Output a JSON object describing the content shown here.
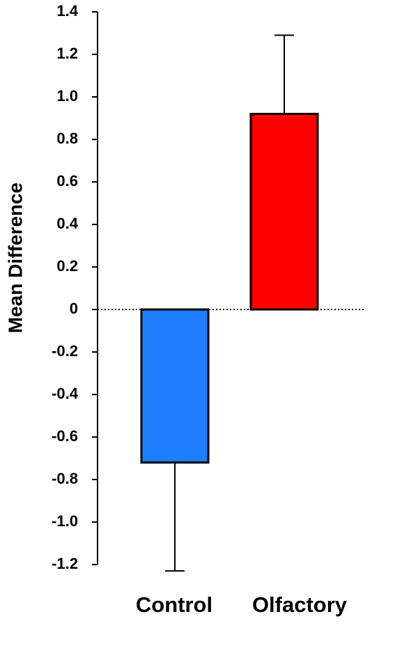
{
  "chart_data": {
    "type": "bar",
    "ylabel": "Mean Difference",
    "categories": [
      "Control",
      "Olfactory"
    ],
    "values": [
      -0.72,
      0.92
    ],
    "errors": [
      0.51,
      0.37
    ],
    "colors": [
      "#1e7cff",
      "#ff0000"
    ],
    "ylim": [
      -1.2,
      1.4
    ],
    "yticks": [
      -1.2,
      {
        "value": -1,
        "label": "-1.0"
      },
      -0.8,
      -0.6,
      -0.4,
      -0.2,
      0,
      0.2,
      0.4,
      0.6,
      0.8,
      {
        "value": 1,
        "label": "1.0"
      },
      1.2,
      1.4
    ]
  }
}
